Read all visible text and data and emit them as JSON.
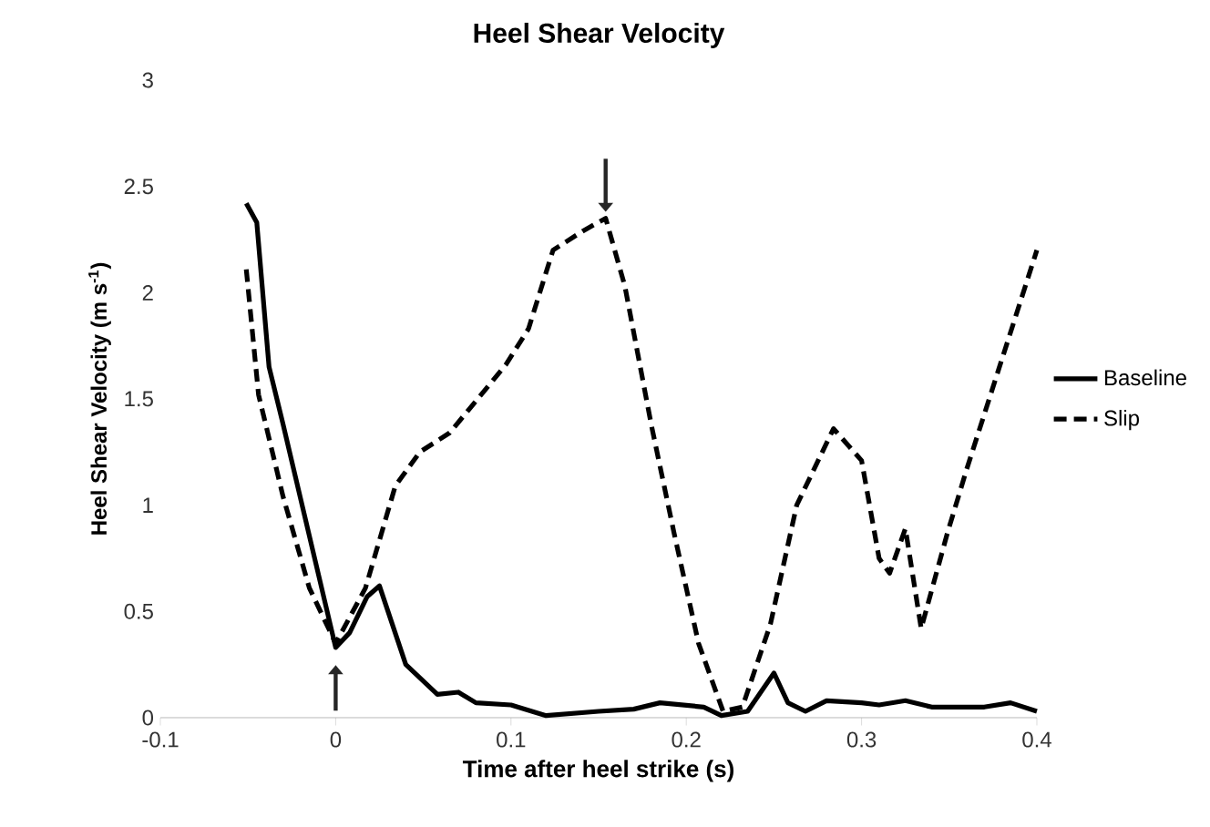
{
  "chart_data": {
    "type": "line",
    "title": "Heel Shear Velocity",
    "xlabel": "Time after heel strike (s)",
    "ylabel": "Heel Shear Velocity (m s$^{-1}$)",
    "xlim": [
      -0.1,
      0.4
    ],
    "xticks": [
      -0.1,
      0,
      0.1,
      0.2,
      0.3,
      0.4
    ],
    "ylim": [
      0,
      3
    ],
    "yticks": [
      0,
      0.5,
      1,
      1.5,
      2,
      2.5,
      3
    ],
    "legend": "right",
    "grid": false,
    "marker": "none",
    "series": [
      {
        "name": "Baseline",
        "color": "#000000",
        "line_style": "solid",
        "x": [
          -0.051,
          -0.045,
          -0.038,
          -0.03,
          0,
          0.008,
          0.018,
          0.025,
          0.04,
          0.058,
          0.07,
          0.08,
          0.1,
          0.12,
          0.15,
          0.17,
          0.185,
          0.21,
          0.22,
          0.235,
          0.25,
          0.258,
          0.268,
          0.28,
          0.3,
          0.31,
          0.325,
          0.34,
          0.37,
          0.385,
          0.4
        ],
        "values": [
          2.42,
          2.33,
          1.65,
          1.38,
          0.33,
          0.4,
          0.57,
          0.62,
          0.25,
          0.11,
          0.12,
          0.07,
          0.06,
          0.01,
          0.03,
          0.04,
          0.07,
          0.05,
          0.01,
          0.03,
          0.21,
          0.07,
          0.03,
          0.08,
          0.07,
          0.06,
          0.08,
          0.05,
          0.05,
          0.07,
          0.03
        ]
      },
      {
        "name": "Slip",
        "color": "#000000",
        "line_style": "dashed",
        "x": [
          -0.051,
          -0.044,
          -0.03,
          -0.015,
          0,
          0.017,
          0.034,
          0.048,
          0.065,
          0.097,
          0.11,
          0.124,
          0.141,
          0.154,
          0.165,
          0.18,
          0.193,
          0.207,
          0.221,
          0.232,
          0.248,
          0.263,
          0.284,
          0.3,
          0.31,
          0.316,
          0.325,
          0.334,
          0.349,
          0.36,
          0.4
        ],
        "values": [
          2.11,
          1.52,
          1.04,
          0.61,
          0.35,
          0.61,
          1.09,
          1.25,
          1.34,
          1.66,
          1.83,
          2.2,
          2.29,
          2.35,
          2.03,
          1.38,
          0.87,
          0.35,
          0.03,
          0.05,
          0.44,
          1.0,
          1.36,
          1.21,
          0.75,
          0.68,
          0.89,
          0.42,
          0.87,
          1.17,
          2.2
        ]
      }
    ]
  }
}
